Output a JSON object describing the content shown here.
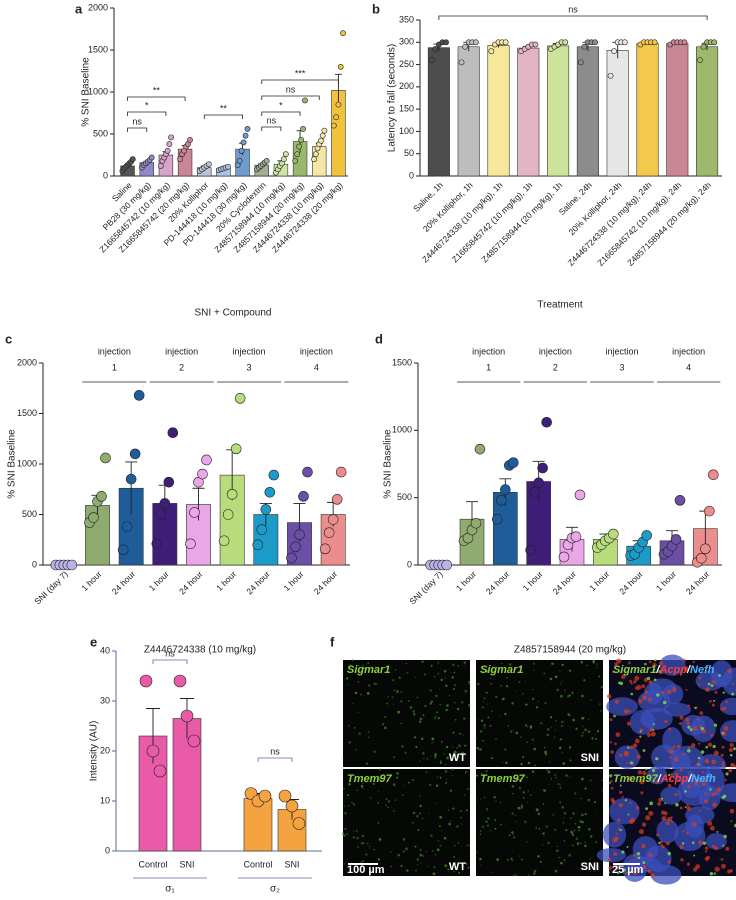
{
  "chart_data": [
    {
      "type": "bar",
      "panel": "a",
      "categories": [
        "Saline",
        "PB28 (30 mg/kg)",
        "Z1665845742 (10 mg/kg)",
        "Z1665845742 (20 mg/kg)",
        "20% Kolliphor",
        "PD-144418 (10 mg/kg)",
        "PD-144418 (30 mg/kg)",
        "20% Cyclodextrin",
        "Z4857158944 (10 mg/kg)",
        "Z4857158944 (20 mg/kg)",
        "Z4446724338 (10 mg/kg)",
        "Z4446724338 (20 mg/kg)"
      ],
      "values": [
        120,
        160,
        250,
        320,
        100,
        90,
        320,
        130,
        140,
        410,
        350,
        1020
      ],
      "errors": [
        15,
        15,
        40,
        40,
        20,
        10,
        70,
        15,
        40,
        130,
        40,
        190
      ],
      "points": [
        [
          60,
          90,
          110,
          130,
          150,
          170,
          200
        ],
        [
          100,
          130,
          150,
          170,
          190,
          220
        ],
        [
          120,
          180,
          220,
          260,
          300,
          380,
          460
        ],
        [
          200,
          260,
          300,
          350,
          380,
          430
        ],
        [
          60,
          80,
          100,
          120,
          140
        ],
        [
          70,
          80,
          90,
          100,
          110
        ],
        [
          130,
          180,
          300,
          400,
          480,
          560
        ],
        [
          80,
          100,
          120,
          140,
          160,
          180
        ],
        [
          40,
          80,
          120,
          150,
          200,
          260
        ],
        [
          180,
          260,
          350,
          430,
          560,
          900
        ],
        [
          200,
          260,
          330,
          380,
          420,
          480,
          540
        ],
        [
          600,
          700,
          850,
          1300,
          1700
        ]
      ],
      "colors": [
        "#555555",
        "#8e8bc4",
        "#d6a5c9",
        "#c98696",
        "#bcc3d6",
        "#a9c4e4",
        "#6f9bcd",
        "#9fad94",
        "#cfe4a4",
        "#9ab86d",
        "#f4e6a6",
        "#f2c23c"
      ],
      "ylim": [
        0,
        2000
      ],
      "yticks": [
        0,
        500,
        1000,
        1500,
        2000
      ],
      "ylabel": "% SNI Baseline",
      "xlabel": "SNI + Compound",
      "annotations": [
        "ns",
        "*",
        "**",
        "**",
        "***",
        "ns",
        "*",
        "ns"
      ]
    },
    {
      "type": "bar",
      "panel": "b",
      "categories": [
        "Saline, 1h",
        "20% Kolliphor, 1h",
        "Z4446724338 (10 mg/kg), 1h",
        "Z1665845742 (10 mg/kg), 1h",
        "Z4857158944 (20 mg/kg), 1h",
        "Saline, 24h",
        "20% Kolliphor, 24h",
        "Z4446724338 (10 mg/kg), 24h",
        "Z1665845742 (10 mg/kg), 24h",
        "Z4857158944 (20 mg/kg), 24h"
      ],
      "values": [
        288,
        290,
        293,
        287,
        292,
        290,
        282,
        297,
        297,
        290
      ],
      "errors": [
        8,
        10,
        5,
        4,
        5,
        10,
        18,
        2,
        2,
        8
      ],
      "points": [
        [
          260,
          285,
          295,
          300,
          300
        ],
        [
          255,
          290,
          300,
          300,
          300
        ],
        [
          280,
          295,
          300,
          300,
          300
        ],
        [
          280,
          285,
          290,
          295,
          295
        ],
        [
          285,
          290,
          295,
          300,
          300
        ],
        [
          255,
          290,
          300,
          300,
          300
        ],
        [
          225,
          280,
          300,
          300,
          300
        ],
        [
          295,
          300,
          300,
          300,
          300
        ],
        [
          295,
          300,
          300,
          300,
          300
        ],
        [
          260,
          290,
          300,
          300,
          300
        ]
      ],
      "colors": [
        "#4d4d4d",
        "#bdbdbd",
        "#f6e79a",
        "#e3b4c3",
        "#cce49a",
        "#8c8c8c",
        "#e6e6e6",
        "#f2c94c",
        "#c98696",
        "#9fb96c"
      ],
      "ylim": [
        0,
        350
      ],
      "yticks": [
        0,
        50,
        100,
        150,
        200,
        250,
        300,
        350
      ],
      "ylabel": "Latency to fall (seconds)",
      "xlabel": "Treatment",
      "annotations": [
        "ns"
      ]
    },
    {
      "type": "bar",
      "panel": "c",
      "categories": [
        "SNI (day 7)",
        "1 hour",
        "24 hour",
        "1 hour",
        "24 hour",
        "1 hour",
        "24 hour",
        "1 hour",
        "24 hour"
      ],
      "values": [
        0,
        590,
        760,
        610,
        600,
        890,
        500,
        420,
        500
      ],
      "errors": [
        0,
        100,
        260,
        180,
        160,
        250,
        110,
        190,
        120
      ],
      "points": [
        [
          0,
          0,
          0,
          0,
          0
        ],
        [
          420,
          470,
          630,
          680,
          1060
        ],
        [
          150,
          380,
          850,
          1100,
          1680
        ],
        [
          210,
          500,
          610,
          820,
          1310
        ],
        [
          210,
          520,
          820,
          900,
          1040
        ],
        [
          240,
          500,
          700,
          1150,
          1650
        ],
        [
          200,
          350,
          550,
          720,
          890
        ],
        [
          70,
          180,
          300,
          680,
          920
        ],
        [
          160,
          320,
          450,
          650,
          920
        ]
      ],
      "colors": [
        "#b9b3e8",
        "#8fab6f",
        "#1f5d9a",
        "#3f1e7a",
        "#eaa6e6",
        "#b8dc7c",
        "#1c9bc9",
        "#6b4ea6",
        "#ec8d8d"
      ],
      "ylim": [
        0,
        2000
      ],
      "yticks": [
        0,
        500,
        1000,
        1500,
        2000
      ],
      "ylabel": "% SNI Baseline",
      "xlabel": "Z4446724338 (10 mg/kg)",
      "groups": [
        [
          "injection",
          "1"
        ],
        [
          "injection",
          "2"
        ],
        [
          "injection",
          "3"
        ],
        [
          "injection",
          "4"
        ]
      ]
    },
    {
      "type": "bar",
      "panel": "d",
      "categories": [
        "SNI (day 7)",
        "1 hour",
        "24 hour",
        "1 hour",
        "24 hour",
        "1 hour",
        "24 hour",
        "1 hour",
        "24 hour"
      ],
      "values": [
        0,
        340,
        540,
        620,
        190,
        190,
        140,
        180,
        270
      ],
      "errors": [
        0,
        130,
        100,
        150,
        90,
        40,
        40,
        75,
        130
      ],
      "points": [
        [
          0,
          0,
          0,
          0,
          0
        ],
        [
          180,
          200,
          260,
          310,
          860
        ],
        [
          340,
          480,
          560,
          740,
          760
        ],
        [
          110,
          540,
          610,
          720,
          1060
        ],
        [
          60,
          150,
          200,
          210,
          520
        ],
        [
          130,
          150,
          180,
          200,
          230
        ],
        [
          70,
          80,
          130,
          170,
          220
        ],
        [
          80,
          100,
          140,
          190,
          480
        ],
        [
          20,
          50,
          120,
          400,
          670
        ]
      ],
      "colors": [
        "#b9b3e8",
        "#8fab6f",
        "#1f5d9a",
        "#3f1e7a",
        "#eaa6e6",
        "#b8dc7c",
        "#1c9bc9",
        "#6b4ea6",
        "#ec8d8d"
      ],
      "ylim": [
        0,
        1500
      ],
      "yticks": [
        0,
        500,
        1000,
        1500
      ],
      "ylabel": "% SNI Baseline",
      "xlabel": "Z4857158944 (20 mg/kg)",
      "groups": [
        [
          "injection",
          "1"
        ],
        [
          "injection",
          "2"
        ],
        [
          "injection",
          "3"
        ],
        [
          "injection",
          "4"
        ]
      ]
    },
    {
      "type": "bar",
      "panel": "e",
      "categories": [
        "Control",
        "SNI",
        "Control",
        "SNI"
      ],
      "values": [
        23,
        26.5,
        10.5,
        8.3
      ],
      "errors": [
        5.5,
        4,
        1,
        2
      ],
      "points": [
        [
          34,
          20,
          16
        ],
        [
          34,
          27,
          22
        ],
        [
          11.5,
          10,
          11
        ],
        [
          11,
          9,
          5.5
        ]
      ],
      "colors": [
        "#e95ba8",
        "#e95ba8",
        "#f5a340",
        "#f5a340"
      ],
      "ylim": [
        0,
        40
      ],
      "yticks": [
        0,
        10,
        20,
        30,
        40
      ],
      "ylabel": "Intensity (AU)",
      "groups": [
        "σ₁",
        "σ₂"
      ],
      "annotations": [
        "ns",
        "ns"
      ]
    }
  ],
  "panel_f": {
    "panel": "f",
    "rows": [
      {
        "gene": "Sigmar1",
        "labels": [
          "WT",
          "SNI"
        ],
        "merge": [
          "Sigmar1",
          "/",
          "Acpp",
          "/",
          "Nefh"
        ]
      },
      {
        "gene": "Tmem97",
        "labels": [
          "WT",
          "SNI"
        ],
        "merge": [
          "Tmem97",
          "/",
          "Acpp",
          "/",
          "Nefh"
        ]
      }
    ],
    "scale_bars": [
      "100 µm",
      "25 µm"
    ]
  }
}
